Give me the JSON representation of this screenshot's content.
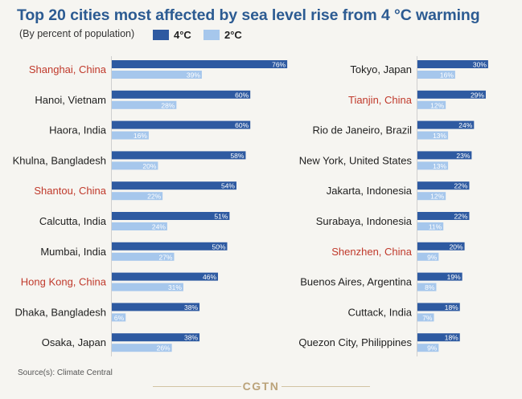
{
  "title": "Top 20 cities most affected by sea level rise from 4 °C warming",
  "subtitle": "(By percent of population)",
  "legend": [
    {
      "label": "4°C",
      "color": "#2e5aa1"
    },
    {
      "label": "2°C",
      "color": "#a6c7ec"
    }
  ],
  "source": "Source(s): Climate Central",
  "brand": "CGTN",
  "colors": {
    "title": "#2c5b92",
    "china_label": "#c0392b",
    "label": "#1e1e1e",
    "bar_4c": "#2e5aa1",
    "bar_2c": "#a6c7ec"
  },
  "chart_data": {
    "type": "bar",
    "orientation": "horizontal",
    "unit": "%",
    "series_names": [
      "4°C",
      "2°C"
    ],
    "panels": [
      {
        "categories": [
          "Shanghai, China",
          "Hanoi, Vietnam",
          "Haora, India",
          "Khulna, Bangladesh",
          "Shantou, China",
          "Calcutta, India",
          "Mumbai, India",
          "Hong Kong, China",
          "Dhaka, Bangladesh",
          "Osaka, Japan"
        ],
        "highlighted": [
          true,
          false,
          false,
          false,
          true,
          false,
          false,
          true,
          false,
          false
        ],
        "series": [
          {
            "name": "4°C",
            "values": [
              76,
              60,
              60,
              58,
              54,
              51,
              50,
              46,
              38,
              38
            ]
          },
          {
            "name": "2°C",
            "values": [
              39,
              28,
              16,
              20,
              22,
              24,
              27,
              31,
              6,
              26
            ]
          }
        ]
      },
      {
        "categories": [
          "Tokyo, Japan",
          "Tianjin, China",
          "Rio de Janeiro, Brazil",
          "New York, United States",
          "Jakarta, Indonesia",
          "Surabaya, Indonesia",
          "Shenzhen, China",
          "Buenos Aires, Argentina",
          "Cuttack, India",
          "Quezon City, Philippines"
        ],
        "highlighted": [
          false,
          true,
          false,
          false,
          false,
          false,
          true,
          false,
          false,
          false
        ],
        "series": [
          {
            "name": "4°C",
            "values": [
              30,
              29,
              24,
              23,
              22,
              22,
              20,
              19,
              18,
              18
            ]
          },
          {
            "name": "2°C",
            "values": [
              16,
              12,
              13,
              13,
              12,
              11,
              9,
              8,
              7,
              9
            ]
          }
        ]
      }
    ]
  }
}
